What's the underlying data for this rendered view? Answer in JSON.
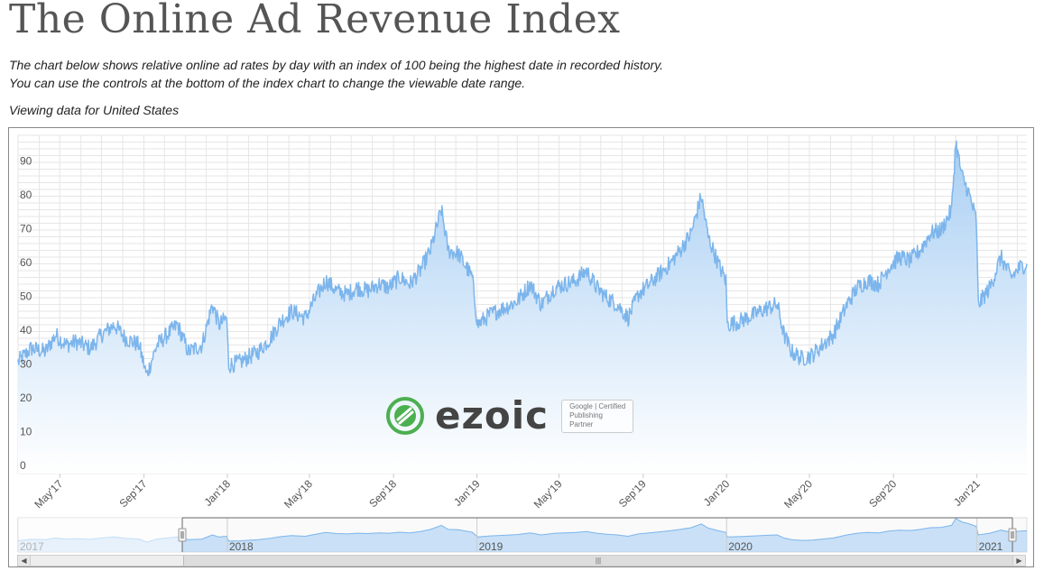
{
  "page": {
    "title": "The Online Ad Revenue Index",
    "description_line1": "The chart below shows relative online ad rates by day with an index of 100 being the highest date in recorded history.",
    "description_line2": "You can use the controls at the bottom of the index chart to change the viewable date range.",
    "viewing": "Viewing data for United States"
  },
  "watermark": {
    "brand": "ezoic",
    "badge_line1": "Google | Certified",
    "badge_line2": "Publishing",
    "badge_line3": "Partner"
  },
  "colors": {
    "line": "#7cb5ec",
    "area_top": "#a9cff3",
    "area_bottom": "#ffffff",
    "grid": "#e6e6e6",
    "logo_green": "#4caf50"
  },
  "scrollbar": {
    "left_arrow": "◀",
    "right_arrow": "▶",
    "thumb_grip": "|||"
  },
  "chart_data": {
    "type": "area",
    "title": "",
    "xlabel": "",
    "ylabel": "",
    "x_range": [
      "2017-03-01",
      "2021-03-15"
    ],
    "ylim": [
      0,
      100
    ],
    "yticks": [
      0,
      10,
      20,
      30,
      40,
      50,
      60,
      70,
      80,
      90
    ],
    "xtick_labels": [
      "May'17",
      "Sep'17",
      "Jan'18",
      "May'18",
      "Sep'18",
      "Jan'19",
      "May'19",
      "Sep'19",
      "Jan'20",
      "May'20",
      "Sep'20",
      "Jan'21"
    ],
    "navigator_year_labels": [
      "2017",
      "2018",
      "2019",
      "2020",
      "2021"
    ],
    "grid": true,
    "legend": "none",
    "series": [
      {
        "points": [
          [
            "2017-03-01",
            33
          ],
          [
            "2017-03-20",
            37
          ],
          [
            "2017-04-10",
            36
          ],
          [
            "2017-04-25",
            41
          ],
          [
            "2017-05-10",
            38
          ],
          [
            "2017-05-25",
            39
          ],
          [
            "2017-06-15",
            37
          ],
          [
            "2017-07-01",
            41
          ],
          [
            "2017-07-20",
            44
          ],
          [
            "2017-08-05",
            40
          ],
          [
            "2017-08-25",
            38
          ],
          [
            "2017-09-05",
            29
          ],
          [
            "2017-09-20",
            38
          ],
          [
            "2017-10-05",
            41
          ],
          [
            "2017-10-20",
            44
          ],
          [
            "2017-11-05",
            36
          ],
          [
            "2017-11-25",
            38
          ],
          [
            "2017-12-10",
            50
          ],
          [
            "2017-12-20",
            44
          ],
          [
            "2017-12-31",
            46
          ],
          [
            "2018-01-03",
            32
          ],
          [
            "2018-01-20",
            33
          ],
          [
            "2018-02-15",
            36
          ],
          [
            "2018-03-05",
            40
          ],
          [
            "2018-03-20",
            45
          ],
          [
            "2018-04-05",
            48
          ],
          [
            "2018-04-25",
            46
          ],
          [
            "2018-05-10",
            52
          ],
          [
            "2018-05-25",
            57
          ],
          [
            "2018-06-10",
            54
          ],
          [
            "2018-06-25",
            53
          ],
          [
            "2018-07-10",
            55
          ],
          [
            "2018-07-25",
            54
          ],
          [
            "2018-08-10",
            56
          ],
          [
            "2018-08-25",
            55
          ],
          [
            "2018-09-10",
            58
          ],
          [
            "2018-09-25",
            56
          ],
          [
            "2018-10-10",
            60
          ],
          [
            "2018-10-25",
            66
          ],
          [
            "2018-11-10",
            78
          ],
          [
            "2018-11-20",
            66
          ],
          [
            "2018-12-05",
            65
          ],
          [
            "2018-12-25",
            58
          ],
          [
            "2019-01-02",
            44
          ],
          [
            "2019-01-20",
            47
          ],
          [
            "2019-02-10",
            49
          ],
          [
            "2019-03-01",
            51
          ],
          [
            "2019-03-20",
            56
          ],
          [
            "2019-04-05",
            50
          ],
          [
            "2019-04-25",
            55
          ],
          [
            "2019-05-10",
            56
          ],
          [
            "2019-05-25",
            57
          ],
          [
            "2019-06-10",
            60
          ],
          [
            "2019-06-25",
            55
          ],
          [
            "2019-07-10",
            52
          ],
          [
            "2019-07-25",
            50
          ],
          [
            "2019-08-10",
            46
          ],
          [
            "2019-08-25",
            53
          ],
          [
            "2019-09-10",
            56
          ],
          [
            "2019-09-25",
            59
          ],
          [
            "2019-10-10",
            62
          ],
          [
            "2019-10-25",
            66
          ],
          [
            "2019-11-10",
            71
          ],
          [
            "2019-11-25",
            82
          ],
          [
            "2019-12-05",
            70
          ],
          [
            "2019-12-20",
            62
          ],
          [
            "2019-12-31",
            57
          ],
          [
            "2020-01-02",
            44
          ],
          [
            "2020-01-20",
            45
          ],
          [
            "2020-02-10",
            47
          ],
          [
            "2020-03-01",
            49
          ],
          [
            "2020-03-15",
            50
          ],
          [
            "2020-03-25",
            41
          ],
          [
            "2020-04-05",
            36
          ],
          [
            "2020-04-20",
            34
          ],
          [
            "2020-05-05",
            35
          ],
          [
            "2020-05-20",
            38
          ],
          [
            "2020-06-05",
            41
          ],
          [
            "2020-06-25",
            50
          ],
          [
            "2020-07-10",
            55
          ],
          [
            "2020-07-25",
            57
          ],
          [
            "2020-08-10",
            56
          ],
          [
            "2020-08-25",
            61
          ],
          [
            "2020-09-10",
            64
          ],
          [
            "2020-09-25",
            63
          ],
          [
            "2020-10-10",
            66
          ],
          [
            "2020-10-25",
            71
          ],
          [
            "2020-11-10",
            72
          ],
          [
            "2020-11-25",
            78
          ],
          [
            "2020-12-01",
            98
          ],
          [
            "2020-12-10",
            88
          ],
          [
            "2020-12-20",
            83
          ],
          [
            "2020-12-31",
            75
          ],
          [
            "2021-01-03",
            50
          ],
          [
            "2021-01-20",
            55
          ],
          [
            "2021-02-05",
            64
          ],
          [
            "2021-02-20",
            58
          ],
          [
            "2021-03-05",
            61
          ],
          [
            "2021-03-15",
            62
          ]
        ]
      }
    ]
  }
}
